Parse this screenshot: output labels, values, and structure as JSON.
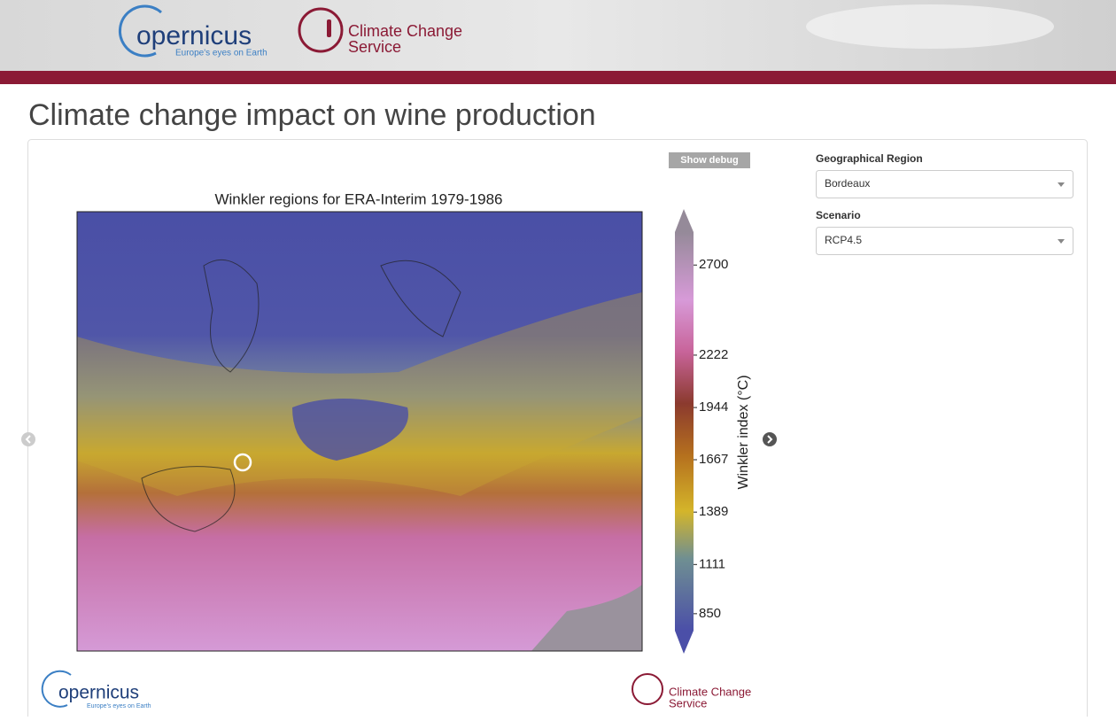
{
  "header": {
    "logo_name": "opernicus",
    "logo_tagline": "Europe's eyes on Earth",
    "service_line1": "Climate Change",
    "service_line2": "Service"
  },
  "page_title": "Climate change impact on wine production",
  "debug_button": "Show debug",
  "figure": {
    "title": "Winkler regions for ERA-Interim 1979-1986",
    "colorbar": {
      "label": "Winkler index (°C)",
      "lim": [
        760,
        2875
      ],
      "ticks": [
        850,
        1111,
        1389,
        1667,
        1944,
        2222,
        2700
      ]
    }
  },
  "form": {
    "region_label": "Geographical Region",
    "region_value": "Bordeaux",
    "scenario_label": "Scenario",
    "scenario_value": "RCP4.5"
  },
  "footer": {
    "logo_name": "opernicus",
    "logo_tagline": "Europe's eyes on Earth",
    "service_line1": "Climate Change",
    "service_line2": "Service"
  }
}
